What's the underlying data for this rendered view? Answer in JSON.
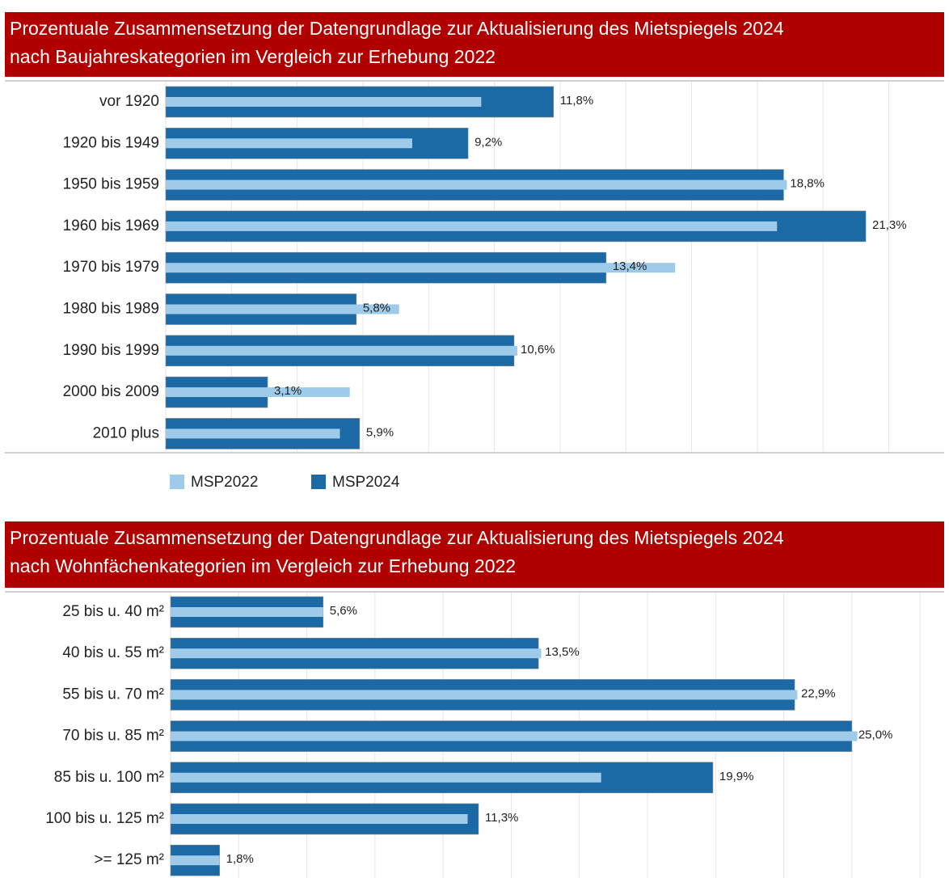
{
  "chart_data": [
    {
      "type": "bar",
      "orientation": "horizontal",
      "title": [
        "Prozentuale Zusammensetzung der Datengrundlage zur Aktualisierung des Mietspiegels 2024",
        "nach Baujahreskategorien im Vergleich zur Erhebung 2022"
      ],
      "categories": [
        "vor 1920",
        "1920 bis 1949",
        "1950 bis 1959",
        "1960 bis 1969",
        "1970 bis 1979",
        "1980 bis 1989",
        "1990 bis 1999",
        "2000 bis 2009",
        "2010 plus"
      ],
      "series": [
        {
          "name": "MSP2022",
          "color": "#9fcbea",
          "values": [
            9.6,
            7.5,
            18.9,
            18.6,
            15.5,
            7.1,
            10.7,
            5.6,
            5.3
          ]
        },
        {
          "name": "MSP2024",
          "color": "#1b6aa5",
          "values": [
            11.8,
            9.2,
            18.8,
            21.3,
            13.4,
            5.8,
            10.6,
            3.1,
            5.9
          ],
          "value_labels": [
            "11,8%",
            "9,2%",
            "18,8%",
            "21,3%",
            "13,4%",
            "5,8%",
            "10,6%",
            "3,1%",
            "5,9%"
          ]
        }
      ],
      "xlim": [
        0,
        23.5
      ],
      "xticks": [
        0,
        2,
        4,
        6,
        8,
        10,
        12,
        14,
        16,
        18,
        20,
        22
      ],
      "grid": true,
      "legend": "bottom-left"
    },
    {
      "type": "bar",
      "orientation": "horizontal",
      "title": [
        "Prozentuale Zusammensetzung der Datengrundlage zur Aktualisierung des Mietspiegels 2024",
        "nach Wohnfächenkategorien im Vergleich zur Erhebung 2022"
      ],
      "categories": [
        "25 bis u. 40 m²",
        "40 bis u. 55 m²",
        "55 bis u. 70 m²",
        "70 bis u. 85 m²",
        "85 bis u. 100 m²",
        "100 bis u. 125 m²",
        ">= 125 m²"
      ],
      "series": [
        {
          "color": "#9fcbea",
          "values": [
            5.6,
            13.6,
            23.0,
            25.2,
            15.8,
            10.9,
            1.8
          ]
        },
        {
          "color": "#1b6aa5",
          "values": [
            5.6,
            13.5,
            22.9,
            25.0,
            19.9,
            11.3,
            1.8
          ],
          "value_labels": [
            "5,6%",
            "13,5%",
            "22,9%",
            "25,0%",
            "19,9%",
            "11,3%",
            "1,8%"
          ]
        }
      ],
      "xlim": [
        0,
        28
      ],
      "xticks": [
        0,
        2.5,
        5,
        7.5,
        10,
        12.5,
        15,
        17.5,
        20,
        22.5,
        25,
        27.5
      ],
      "grid": true
    }
  ]
}
